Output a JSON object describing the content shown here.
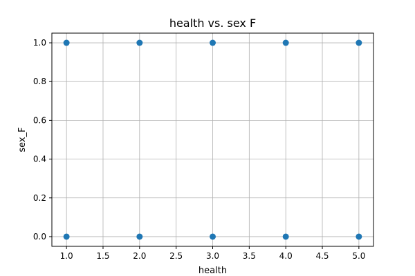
{
  "chart_data": {
    "type": "scatter",
    "title": "health vs. sex F",
    "xlabel": "health",
    "ylabel": "sex_F",
    "xlim": [
      0.8,
      5.2
    ],
    "ylim": [
      -0.05,
      1.05
    ],
    "grid": true,
    "x_ticks": [
      {
        "value": 1.0,
        "label": "1.0"
      },
      {
        "value": 1.5,
        "label": "1.5"
      },
      {
        "value": 2.0,
        "label": "2.0"
      },
      {
        "value": 2.5,
        "label": "2.5"
      },
      {
        "value": 3.0,
        "label": "3.0"
      },
      {
        "value": 3.5,
        "label": "3.5"
      },
      {
        "value": 4.0,
        "label": "4.0"
      },
      {
        "value": 4.5,
        "label": "4.5"
      },
      {
        "value": 5.0,
        "label": "5.0"
      }
    ],
    "y_ticks": [
      {
        "value": 0.0,
        "label": "0.0"
      },
      {
        "value": 0.2,
        "label": "0.2"
      },
      {
        "value": 0.4,
        "label": "0.4"
      },
      {
        "value": 0.6,
        "label": "0.6"
      },
      {
        "value": 0.8,
        "label": "0.8"
      },
      {
        "value": 1.0,
        "label": "1.0"
      }
    ],
    "points": [
      {
        "x": 1,
        "y": 1
      },
      {
        "x": 2,
        "y": 1
      },
      {
        "x": 3,
        "y": 1
      },
      {
        "x": 4,
        "y": 1
      },
      {
        "x": 5,
        "y": 1
      },
      {
        "x": 1,
        "y": 0
      },
      {
        "x": 2,
        "y": 0
      },
      {
        "x": 3,
        "y": 0
      },
      {
        "x": 4,
        "y": 0
      },
      {
        "x": 5,
        "y": 0
      }
    ],
    "marker_color": "#1f77b4"
  }
}
